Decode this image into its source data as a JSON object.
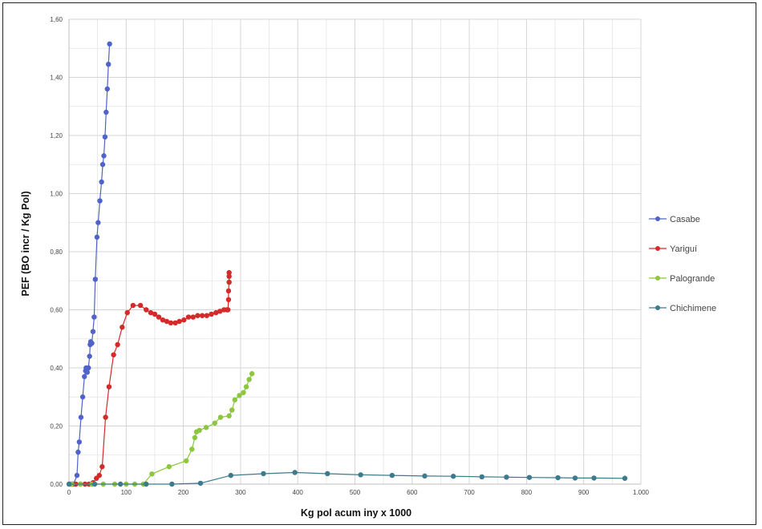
{
  "chart_data": {
    "type": "scatter",
    "xlabel": "Kg pol acum iny x 1000",
    "ylabel": "PEF (BO incr / Kg Pol)",
    "xlim": [
      0,
      1000
    ],
    "ylim": [
      0,
      1.6
    ],
    "x_ticks": [
      0,
      100,
      200,
      300,
      400,
      500,
      600,
      700,
      800,
      900,
      1000
    ],
    "x_tick_labels": [
      "0",
      "100",
      "200",
      "300",
      "400",
      "500",
      "600",
      "700",
      "800",
      "900",
      "1.000"
    ],
    "y_ticks": [
      0,
      0.2,
      0.4,
      0.6,
      0.8,
      1.0,
      1.2,
      1.4,
      1.6
    ],
    "y_tick_labels": [
      "0,00",
      "0,20",
      "0,40",
      "0,60",
      "0,80",
      "1,00",
      "1,20",
      "1,40",
      "1,60"
    ],
    "grid": true,
    "legend_position": "right",
    "series": [
      {
        "name": "Casabe",
        "color": "#4f63c8",
        "points": [
          [
            2,
            0
          ],
          [
            8,
            0
          ],
          [
            14,
            0.03
          ],
          [
            16,
            0.11
          ],
          [
            18,
            0.145
          ],
          [
            21,
            0.23
          ],
          [
            24,
            0.3
          ],
          [
            27,
            0.37
          ],
          [
            29,
            0.39
          ],
          [
            30,
            0.4
          ],
          [
            32,
            0.385
          ],
          [
            34,
            0.4
          ],
          [
            36,
            0.44
          ],
          [
            37,
            0.48
          ],
          [
            38,
            0.49
          ],
          [
            40,
            0.485
          ],
          [
            42,
            0.525
          ],
          [
            44,
            0.575
          ],
          [
            46,
            0.705
          ],
          [
            49,
            0.85
          ],
          [
            51,
            0.9
          ],
          [
            54,
            0.975
          ],
          [
            57,
            1.04
          ],
          [
            59,
            1.1
          ],
          [
            61,
            1.13
          ],
          [
            63,
            1.195
          ],
          [
            65,
            1.28
          ],
          [
            67,
            1.36
          ],
          [
            69,
            1.445
          ],
          [
            71,
            1.515
          ]
        ]
      },
      {
        "name": "Yariguí",
        "color": "#d42a2a",
        "points": [
          [
            5,
            0
          ],
          [
            12,
            0
          ],
          [
            20,
            0
          ],
          [
            28,
            0
          ],
          [
            35,
            0
          ],
          [
            42,
            0.005
          ],
          [
            48,
            0.02
          ],
          [
            53,
            0.03
          ],
          [
            58,
            0.06
          ],
          [
            64,
            0.23
          ],
          [
            70,
            0.335
          ],
          [
            78,
            0.445
          ],
          [
            85,
            0.48
          ],
          [
            93,
            0.54
          ],
          [
            102,
            0.59
          ],
          [
            112,
            0.615
          ],
          [
            125,
            0.615
          ],
          [
            135,
            0.6
          ],
          [
            143,
            0.59
          ],
          [
            150,
            0.585
          ],
          [
            157,
            0.575
          ],
          [
            164,
            0.565
          ],
          [
            171,
            0.56
          ],
          [
            178,
            0.555
          ],
          [
            186,
            0.555
          ],
          [
            193,
            0.56
          ],
          [
            201,
            0.565
          ],
          [
            209,
            0.575
          ],
          [
            217,
            0.575
          ],
          [
            225,
            0.58
          ],
          [
            233,
            0.58
          ],
          [
            241,
            0.58
          ],
          [
            249,
            0.585
          ],
          [
            257,
            0.59
          ],
          [
            264,
            0.595
          ],
          [
            271,
            0.6
          ],
          [
            276,
            0.6
          ],
          [
            278,
            0.6
          ],
          [
            279,
            0.635
          ],
          [
            279,
            0.665
          ],
          [
            280,
            0.695
          ],
          [
            280,
            0.715
          ],
          [
            280,
            0.728
          ]
        ]
      },
      {
        "name": "Palogrande",
        "color": "#8dc63f",
        "points": [
          [
            5,
            0
          ],
          [
            20,
            0
          ],
          [
            40,
            0
          ],
          [
            60,
            0
          ],
          [
            80,
            0
          ],
          [
            100,
            0
          ],
          [
            115,
            0
          ],
          [
            130,
            0
          ],
          [
            145,
            0.035
          ],
          [
            175,
            0.06
          ],
          [
            205,
            0.08
          ],
          [
            215,
            0.12
          ],
          [
            220,
            0.16
          ],
          [
            223,
            0.18
          ],
          [
            228,
            0.185
          ],
          [
            240,
            0.195
          ],
          [
            255,
            0.21
          ],
          [
            265,
            0.23
          ],
          [
            280,
            0.235
          ],
          [
            285,
            0.255
          ],
          [
            290,
            0.29
          ],
          [
            298,
            0.305
          ],
          [
            305,
            0.315
          ],
          [
            310,
            0.335
          ],
          [
            315,
            0.36
          ],
          [
            320,
            0.38
          ]
        ]
      },
      {
        "name": "Chichimene",
        "color": "#3d7a8c",
        "points": [
          [
            0,
            0
          ],
          [
            45,
            0
          ],
          [
            90,
            0
          ],
          [
            135,
            0
          ],
          [
            180,
            0
          ],
          [
            230,
            0.003
          ],
          [
            283,
            0.03
          ],
          [
            340,
            0.036
          ],
          [
            395,
            0.04
          ],
          [
            452,
            0.036
          ],
          [
            510,
            0.032
          ],
          [
            565,
            0.03
          ],
          [
            622,
            0.028
          ],
          [
            672,
            0.027
          ],
          [
            722,
            0.025
          ],
          [
            765,
            0.024
          ],
          [
            805,
            0.023
          ],
          [
            855,
            0.022
          ],
          [
            885,
            0.021
          ],
          [
            918,
            0.021
          ],
          [
            972,
            0.02
          ]
        ]
      }
    ]
  }
}
